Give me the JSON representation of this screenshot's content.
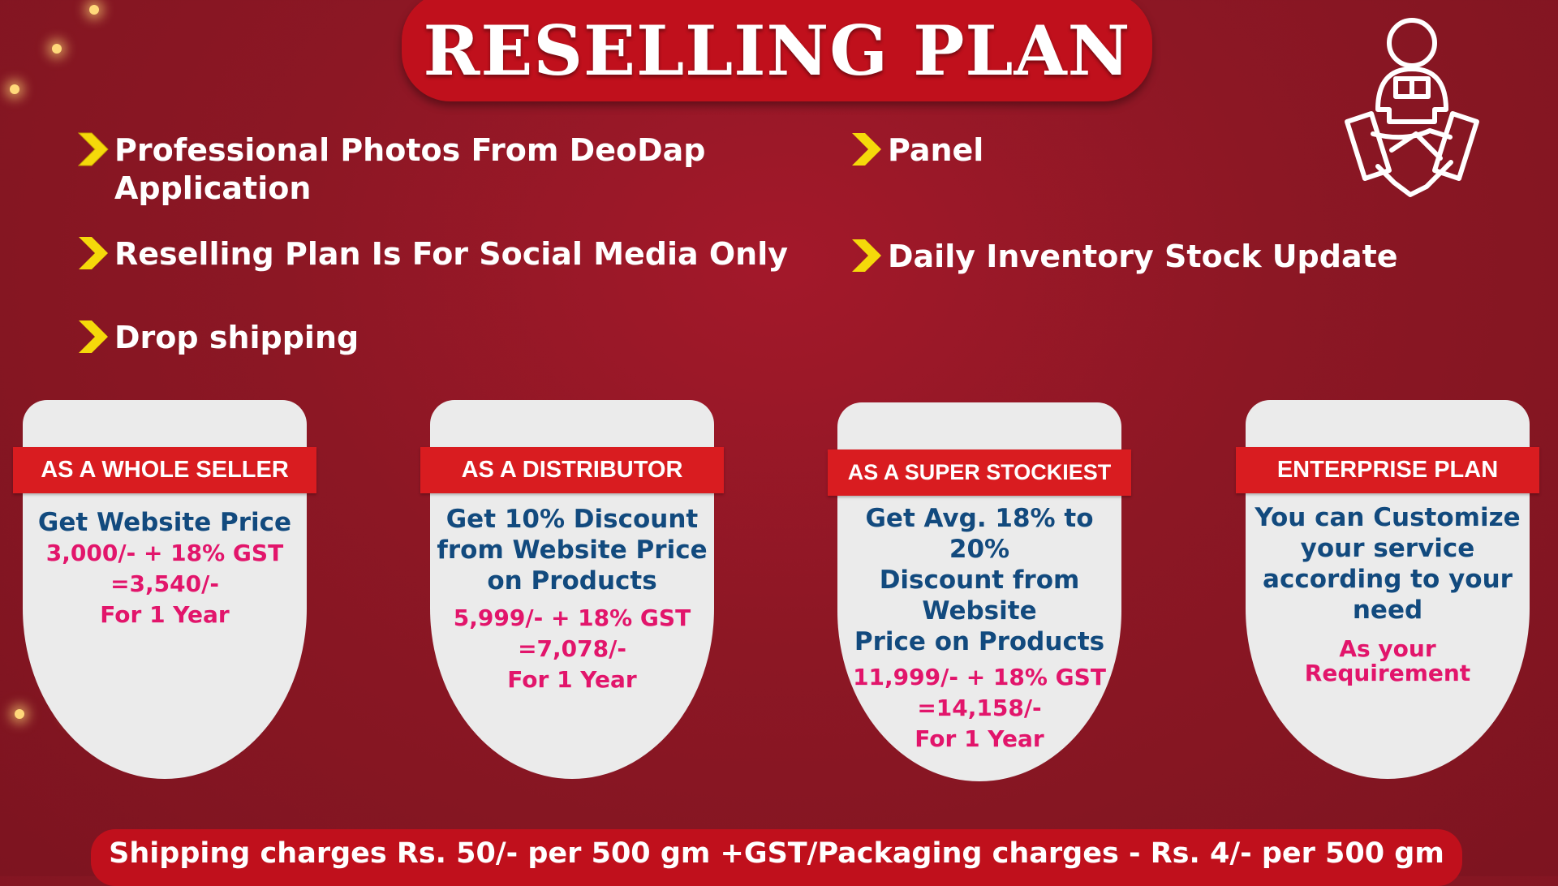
{
  "title": "RESELLING PLAN",
  "features": [
    {
      "line1": "Professional Photos From DeoDap",
      "line2": "Application"
    },
    {
      "line1": "Panel"
    },
    {
      "line1": "Reselling Plan Is For Social Media Only"
    },
    {
      "line1": "Daily Inventory Stock Update"
    },
    {
      "line1": "Drop shipping"
    }
  ],
  "plans": [
    {
      "name": "AS A WHOLE SELLER",
      "desc": [
        "Get Website Price"
      ],
      "price": [
        "3,000/- + 18% GST",
        "=3,540/-",
        "For 1 Year"
      ]
    },
    {
      "name": "AS A DISTRIBUTOR",
      "desc": [
        "Get 10% Discount",
        "from Website Price",
        "on Products"
      ],
      "price": [
        "5,999/- + 18% GST",
        "=7,078/-",
        "For 1 Year"
      ]
    },
    {
      "name": "AS A SUPER STOCKIEST",
      "desc": [
        "Get Avg. 18% to 20%",
        "Discount from",
        "Website",
        "Price on Products"
      ],
      "price": [
        "11,999/- + 18% GST",
        "=14,158/-",
        "For 1 Year"
      ]
    },
    {
      "name": "ENTERPRISE PLAN",
      "desc": [
        "You can Customize",
        "your service",
        "according to your",
        "need"
      ],
      "price": [
        "As your",
        "Requirement"
      ]
    }
  ],
  "footer": "Shipping charges Rs. 50/- per 500 gm +GST/Packaging charges - Rs. 4/- per 500 gm",
  "colors": {
    "background": "#8c1724",
    "accent_red": "#d91c20",
    "arrow_yellow": "#f5d90a",
    "desc_blue": "#124a7e",
    "price_pink": "#e2156b"
  },
  "icons": [
    "chevron-arrow-icon",
    "handshake-delivery-icon"
  ]
}
